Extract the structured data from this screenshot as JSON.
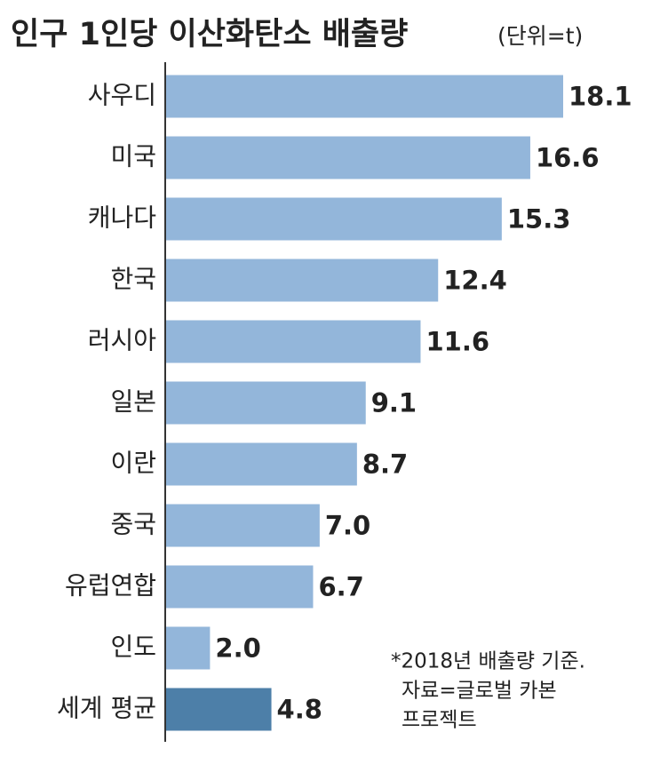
{
  "chart_data": {
    "type": "hbar",
    "title": "인구 1인당 이산화탄소 배출량",
    "subtitle": "(단위=t)",
    "categories": [
      "사우디",
      "미국",
      "캐나다",
      "한국",
      "러시아",
      "일본",
      "이란",
      "중국",
      "유럽연합",
      "인도",
      "세계 평균"
    ],
    "values": [
      18.1,
      16.6,
      15.3,
      12.4,
      11.6,
      9.1,
      8.7,
      7.0,
      6.7,
      2.0,
      4.8
    ],
    "value_labels": [
      "18.1",
      "16.6",
      "15.3",
      "12.4",
      "11.6",
      "9.1",
      "8.7",
      "7.0",
      "6.7",
      "2.0",
      "4.8"
    ],
    "colors": [
      "#93b6da",
      "#93b6da",
      "#93b6da",
      "#93b6da",
      "#93b6da",
      "#93b6da",
      "#93b6da",
      "#93b6da",
      "#93b6da",
      "#93b6da",
      "#4d7fa8"
    ],
    "annotation": [
      "*2018년 배출량 기준.",
      "자료=글로벌 카본",
      "프로젝트"
    ]
  }
}
